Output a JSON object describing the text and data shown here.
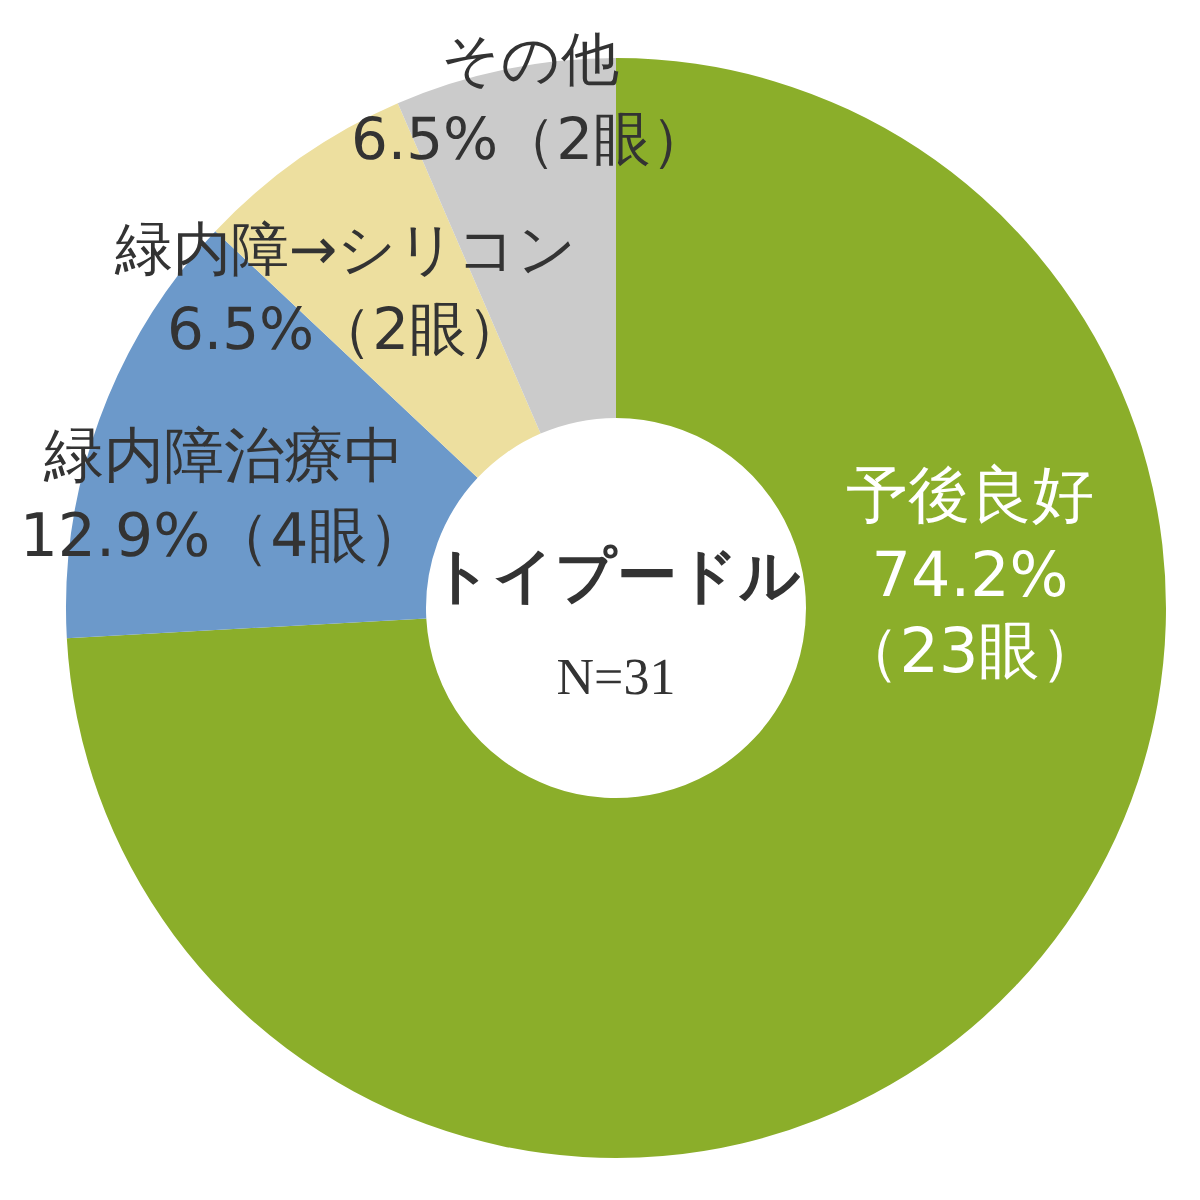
{
  "chart_data": {
    "type": "donut",
    "title": "トイプードル",
    "subtitle": "N=31",
    "categories": [
      "予後良好",
      "緑内障治療中",
      "緑内障→シリコン",
      "その他"
    ],
    "values": [
      74.2,
      12.9,
      6.5,
      6.5
    ],
    "colors": [
      "#8bae2a",
      "#6c99ca",
      "#eddf9f",
      "#cbcbcb"
    ],
    "value_labels": [
      "74.2%\n（23眼）",
      "12.9%（4眼）",
      "6.5%（2眼）",
      "6.5%（2眼）"
    ],
    "legend": false
  }
}
